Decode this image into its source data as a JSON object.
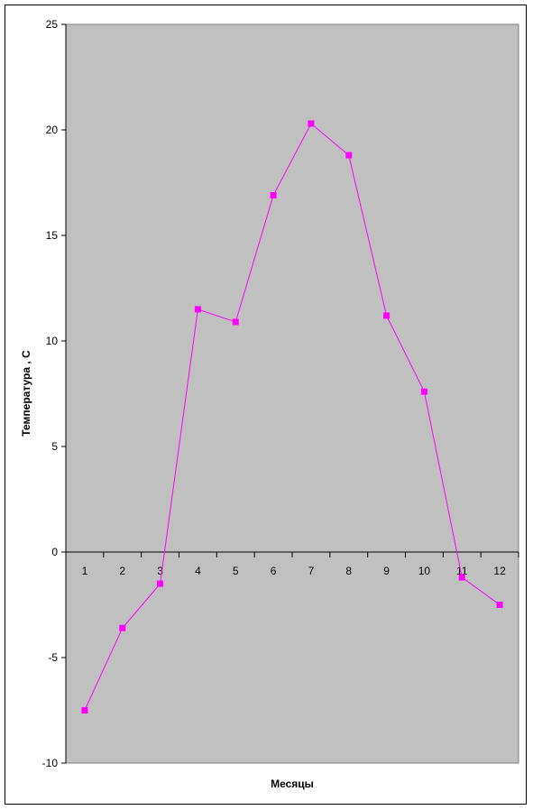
{
  "chart_data": {
    "type": "line",
    "title": "",
    "xlabel": "Месяцы",
    "ylabel": "Температура , С",
    "ylim": [
      -10,
      25
    ],
    "yticks": [
      -10,
      -5,
      0,
      5,
      10,
      15,
      20,
      25
    ],
    "grid": false,
    "legend": "none",
    "categories": [
      "1",
      "2",
      "3",
      "4",
      "5",
      "6",
      "7",
      "8",
      "9",
      "10",
      "11",
      "12"
    ],
    "series": [
      {
        "values": [
          -7.5,
          -3.6,
          -1.5,
          11.5,
          10.9,
          16.9,
          20.3,
          18.8,
          11.2,
          7.6,
          -1.2,
          -2.5
        ],
        "color": "#ff00ff"
      }
    ],
    "plot_background": "#c0c0c0"
  }
}
